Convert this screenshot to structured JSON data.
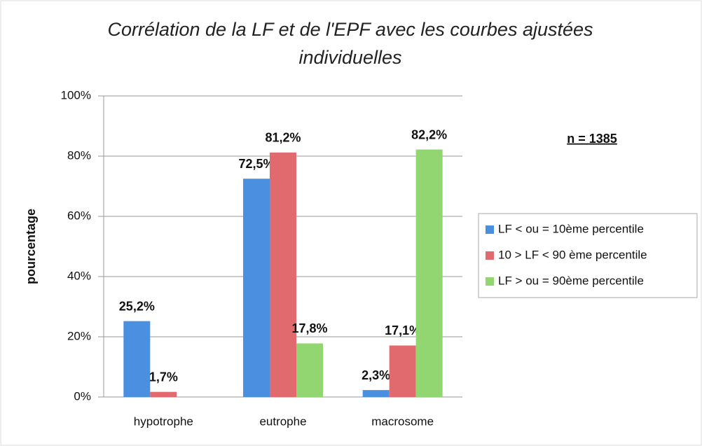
{
  "chart_data": {
    "type": "bar",
    "title": "Corrélation de la LF et de l'EPF avec les courbes ajustées individuelles",
    "ylabel": "pourcentage",
    "annotation": "n = 1385",
    "categories": [
      "hypotrophe",
      "eutrophe",
      "macrosome"
    ],
    "series": [
      {
        "name": "LF < ou = 10ème percentile",
        "color": "#4a8fe0",
        "values": [
          25.2,
          72.5,
          2.3
        ],
        "value_labels": [
          "25,2%",
          "72,5%",
          "2,3%"
        ]
      },
      {
        "name": "10 > LF < 90 ème percentile",
        "color": "#e06a6e",
        "values": [
          1.7,
          81.2,
          17.1
        ],
        "value_labels": [
          "1,7%",
          "81,2%",
          "17,1%"
        ]
      },
      {
        "name": "LF > ou = 90ème percentile",
        "color": "#92d672",
        "values": [
          null,
          17.8,
          82.2
        ],
        "value_labels": [
          null,
          "17,8%",
          "82,2%"
        ]
      }
    ],
    "ylim": [
      0,
      100
    ],
    "yticks": [
      {
        "value": 0,
        "label": "0%"
      },
      {
        "value": 20,
        "label": "20%"
      },
      {
        "value": 40,
        "label": "40%"
      },
      {
        "value": 60,
        "label": "60%"
      },
      {
        "value": 80,
        "label": "80%"
      },
      {
        "value": 100,
        "label": "100%"
      }
    ],
    "grid": true,
    "legend": "right"
  }
}
